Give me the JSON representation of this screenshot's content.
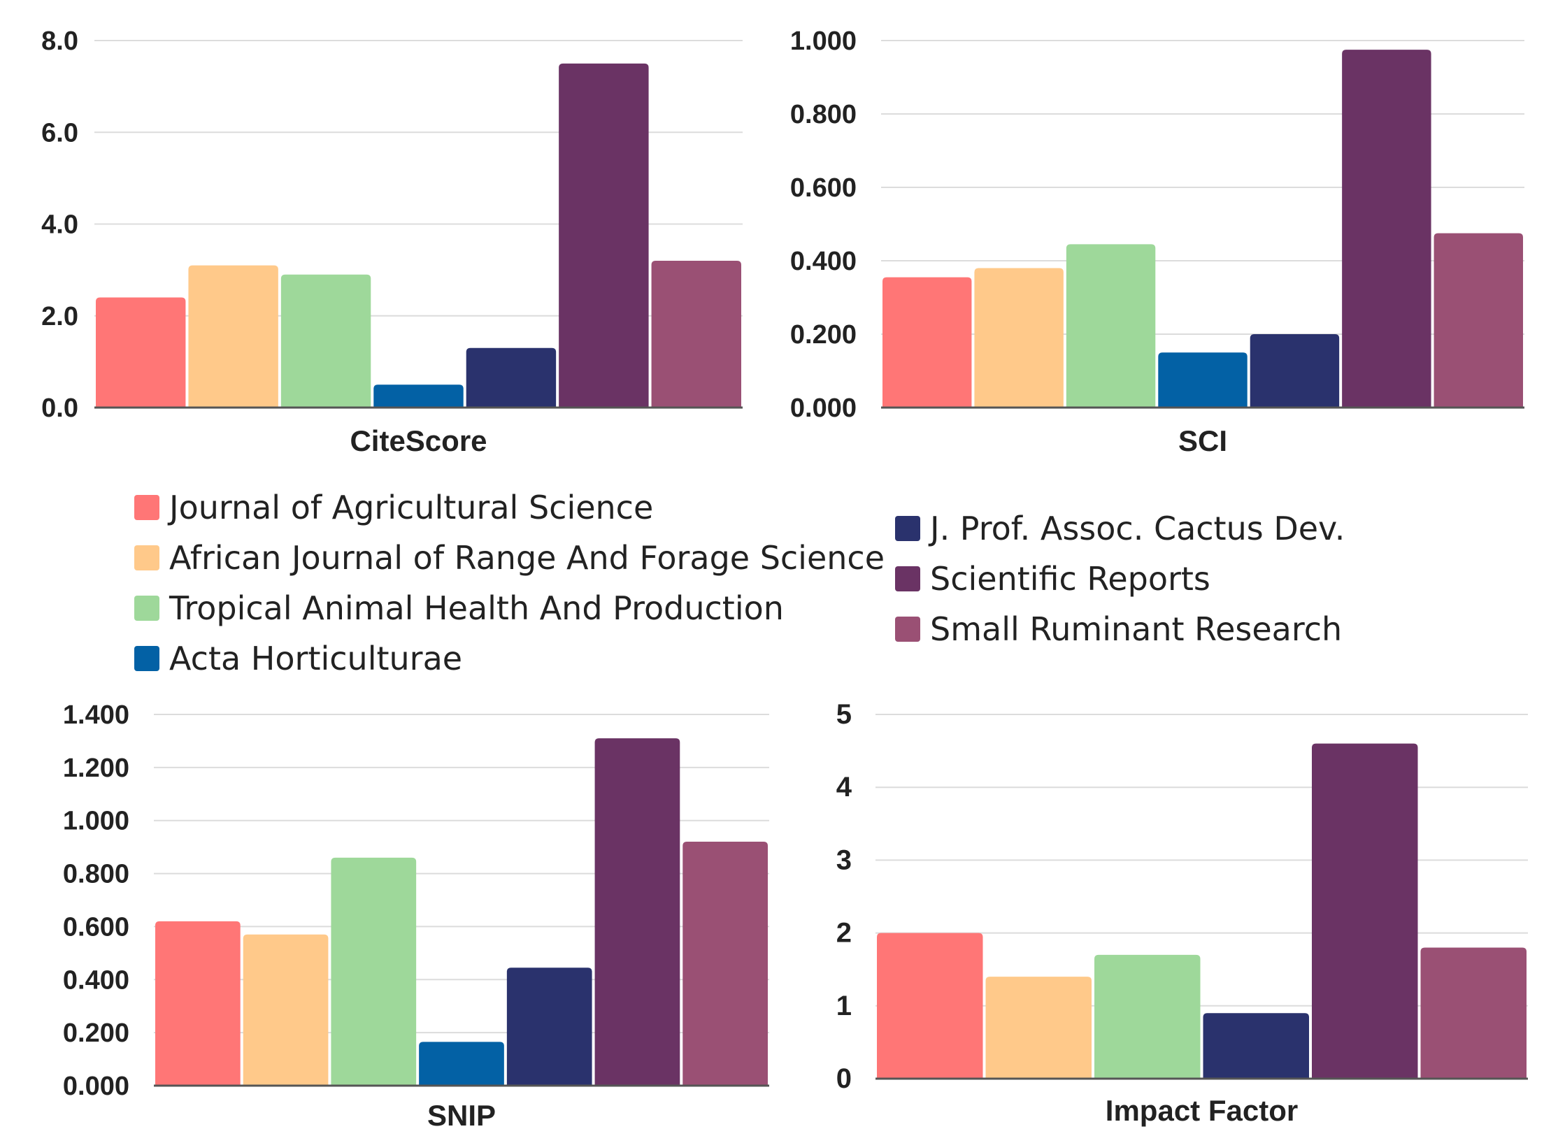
{
  "series": [
    {
      "name": "Journal of Agricultural Science",
      "color": "#ff7676"
    },
    {
      "name": "African Journal of Range And Forage Science",
      "color": "#ffc98a"
    },
    {
      "name": "Tropical Animal Health And Production",
      "color": "#9ed89a"
    },
    {
      "name": "Acta Horticulturae",
      "color": "#0361a5"
    },
    {
      "name": "J. Prof. Assoc. Cactus Dev.",
      "color": "#2a326d"
    },
    {
      "name": "Scientific Reports",
      "color": "#6a3364"
    },
    {
      "name": "Small Ruminant Research",
      "color": "#9a5074"
    }
  ],
  "legend": {
    "left": [
      "Journal of Agricultural Science",
      "African Journal of Range And Forage Science",
      "Tropical Animal Health And Production",
      "Acta Horticulturae"
    ],
    "right": [
      "J. Prof. Assoc. Cactus Dev.",
      "Scientific Reports",
      "Small Ruminant Research"
    ]
  },
  "chart_data": [
    {
      "type": "bar",
      "xlabel": "CiteScore",
      "ylim": [
        0,
        8
      ],
      "yticks": [
        "0.0",
        "2.0",
        "4.0",
        "6.0",
        "8.0"
      ],
      "categories": [
        "Journal of Agricultural Science",
        "African Journal of Range And Forage Science",
        "Tropical Animal Health And Production",
        "Acta Horticulturae",
        "J. Prof. Assoc. Cactus Dev.",
        "Scientific Reports",
        "Small Ruminant Research"
      ],
      "values": [
        2.4,
        3.1,
        2.9,
        0.5,
        1.3,
        7.5,
        3.2
      ]
    },
    {
      "type": "bar",
      "xlabel": "SCI",
      "ylim": [
        0,
        1
      ],
      "yticks": [
        "0.000",
        "0.200",
        "0.400",
        "0.600",
        "0.800",
        "1.000"
      ],
      "categories": [
        "Journal of Agricultural Science",
        "African Journal of Range And Forage Science",
        "Tropical Animal Health And Production",
        "Acta Horticulturae",
        "J. Prof. Assoc. Cactus Dev.",
        "Scientific Reports",
        "Small Ruminant Research"
      ],
      "values": [
        0.355,
        0.38,
        0.445,
        0.15,
        0.2,
        0.975,
        0.475
      ]
    },
    {
      "type": "bar",
      "xlabel": "SNIP",
      "ylim": [
        0,
        1.4
      ],
      "yticks": [
        "0.000",
        "0.200",
        "0.400",
        "0.600",
        "0.800",
        "1.000",
        "1.200",
        "1.400"
      ],
      "categories": [
        "Journal of Agricultural Science",
        "African Journal of Range And Forage Science",
        "Tropical Animal Health And Production",
        "Acta Horticulturae",
        "J. Prof. Assoc. Cactus Dev.",
        "Scientific Reports",
        "Small Ruminant Research"
      ],
      "values": [
        0.62,
        0.57,
        0.86,
        0.165,
        0.445,
        1.31,
        0.92
      ]
    },
    {
      "type": "bar",
      "xlabel": "Impact Factor",
      "ylim": [
        0,
        5
      ],
      "yticks": [
        "0",
        "1",
        "2",
        "3",
        "4",
        "5"
      ],
      "categories": [
        "Journal of Agricultural Science",
        "African Journal of Range And Forage Science",
        "Tropical Animal Health And Production",
        "J. Prof. Assoc. Cactus Dev.",
        "Scientific Reports",
        "Small Ruminant Research"
      ],
      "values": [
        2.0,
        1.4,
        1.7,
        0.9,
        4.6,
        1.8
      ]
    }
  ]
}
